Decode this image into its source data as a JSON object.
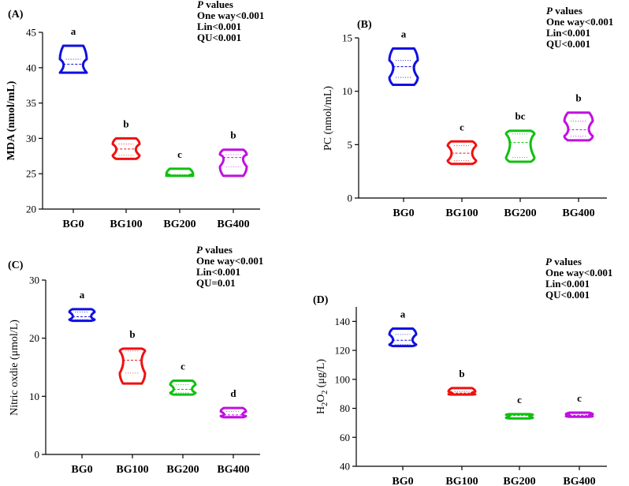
{
  "chart_data": [
    {
      "type": "violin",
      "panel": "(A)",
      "ylabel": "MDA (nmol/mL)",
      "ylim": [
        20,
        45
      ],
      "yticks": [
        20,
        25,
        30,
        35,
        40,
        45
      ],
      "categories": [
        "BG0",
        "BG100",
        "BG200",
        "BG400"
      ],
      "colors": [
        "#1010e0",
        "#f01010",
        "#10c010",
        "#c010e0"
      ],
      "series": [
        {
          "min": 39.3,
          "q1": 39.3,
          "median": 40.5,
          "q3": 41.2,
          "max": 43.1,
          "letter": "a"
        },
        {
          "min": 27.1,
          "q1": 27.6,
          "median": 28.5,
          "q3": 29.2,
          "max": 30.0,
          "letter": "b"
        },
        {
          "min": 24.7,
          "q1": 24.7,
          "median": 24.8,
          "q3": 24.9,
          "max": 25.7,
          "letter": "c"
        },
        {
          "min": 24.7,
          "q1": 26.0,
          "median": 27.3,
          "q3": 27.7,
          "max": 28.4,
          "letter": "b"
        }
      ],
      "pvalues": {
        "italic": "P",
        "title": " values",
        "lines": [
          "One way<0.001",
          "Lin<0.001",
          "QU<0.001"
        ]
      }
    },
    {
      "type": "violin",
      "panel": "(B)",
      "ylabel": "PC (nmol/mL)",
      "ylim": [
        0,
        15
      ],
      "yticks": [
        0,
        5,
        10,
        15
      ],
      "categories": [
        "BG0",
        "BG100",
        "BG200",
        "BG400"
      ],
      "colors": [
        "#1010e0",
        "#f01010",
        "#10c010",
        "#c010e0"
      ],
      "series": [
        {
          "min": 10.6,
          "q1": 11.3,
          "median": 12.3,
          "q3": 12.9,
          "max": 14.0,
          "letter": "a"
        },
        {
          "min": 3.2,
          "q1": 3.5,
          "median": 4.2,
          "q3": 4.9,
          "max": 5.3,
          "letter": "c"
        },
        {
          "min": 3.4,
          "q1": 3.8,
          "median": 5.2,
          "q3": 6.0,
          "max": 6.3,
          "letter": "bc"
        },
        {
          "min": 5.4,
          "q1": 5.8,
          "median": 6.4,
          "q3": 7.2,
          "max": 8.0,
          "letter": "b"
        }
      ],
      "pvalues": {
        "italic": "P",
        "title": " values",
        "lines": [
          "One way<0.001",
          "Lin<0.001",
          "QU<0.001"
        ]
      }
    },
    {
      "type": "violin",
      "panel": "(C)",
      "ylabel": "Nitric oxdie (μmol/L)",
      "ylim": [
        0,
        30
      ],
      "yticks": [
        0,
        10,
        20,
        30
      ],
      "categories": [
        "BG0",
        "BG100",
        "BG200",
        "BG400"
      ],
      "colors": [
        "#1010e0",
        "#f01010",
        "#10c010",
        "#c010e0"
      ],
      "series": [
        {
          "min": 23.0,
          "q1": 23.2,
          "median": 23.7,
          "q3": 24.5,
          "max": 25.0,
          "letter": "a"
        },
        {
          "min": 12.2,
          "q1": 14.0,
          "median": 16.2,
          "q3": 17.8,
          "max": 18.2,
          "letter": "b"
        },
        {
          "min": 10.3,
          "q1": 10.6,
          "median": 11.2,
          "q3": 12.0,
          "max": 12.7,
          "letter": "c"
        },
        {
          "min": 6.4,
          "q1": 6.6,
          "median": 6.8,
          "q3": 7.4,
          "max": 8.0,
          "letter": "d"
        }
      ],
      "pvalues": {
        "italic": "P",
        "title": " values",
        "lines": [
          "One way<0.001",
          "Lin<0.001",
          "QU=0.01"
        ]
      }
    },
    {
      "type": "violin",
      "panel": "(D)",
      "ylabel_main": "H",
      "ylabel_sub": "2",
      "ylabel_mid": "O",
      "ylabel_sub2": "2",
      "ylabel_rest": " (μg/L)",
      "ylim": [
        40,
        150
      ],
      "yticks": [
        40,
        60,
        80,
        100,
        120,
        140
      ],
      "categories": [
        "BG0",
        "BG100",
        "BG200",
        "BG400"
      ],
      "colors": [
        "#1010e0",
        "#f01010",
        "#10c010",
        "#c010e0"
      ],
      "series": [
        {
          "min": 123.0,
          "q1": 124.0,
          "median": 127.0,
          "q3": 131.0,
          "max": 135.0,
          "letter": "a"
        },
        {
          "min": 89.5,
          "q1": 89.7,
          "median": 90.5,
          "q3": 91.5,
          "max": 94.0,
          "letter": "b"
        },
        {
          "min": 73.0,
          "q1": 73.5,
          "median": 75.0,
          "q3": 75.5,
          "max": 76.0,
          "letter": "c"
        },
        {
          "min": 74.2,
          "q1": 74.5,
          "median": 75.2,
          "q3": 76.0,
          "max": 77.0,
          "letter": "c"
        }
      ],
      "pvalues": {
        "italic": "P",
        "title": " values",
        "lines": [
          "One way<0.001",
          "Lin<0.001",
          "QU<0.001"
        ]
      }
    }
  ]
}
